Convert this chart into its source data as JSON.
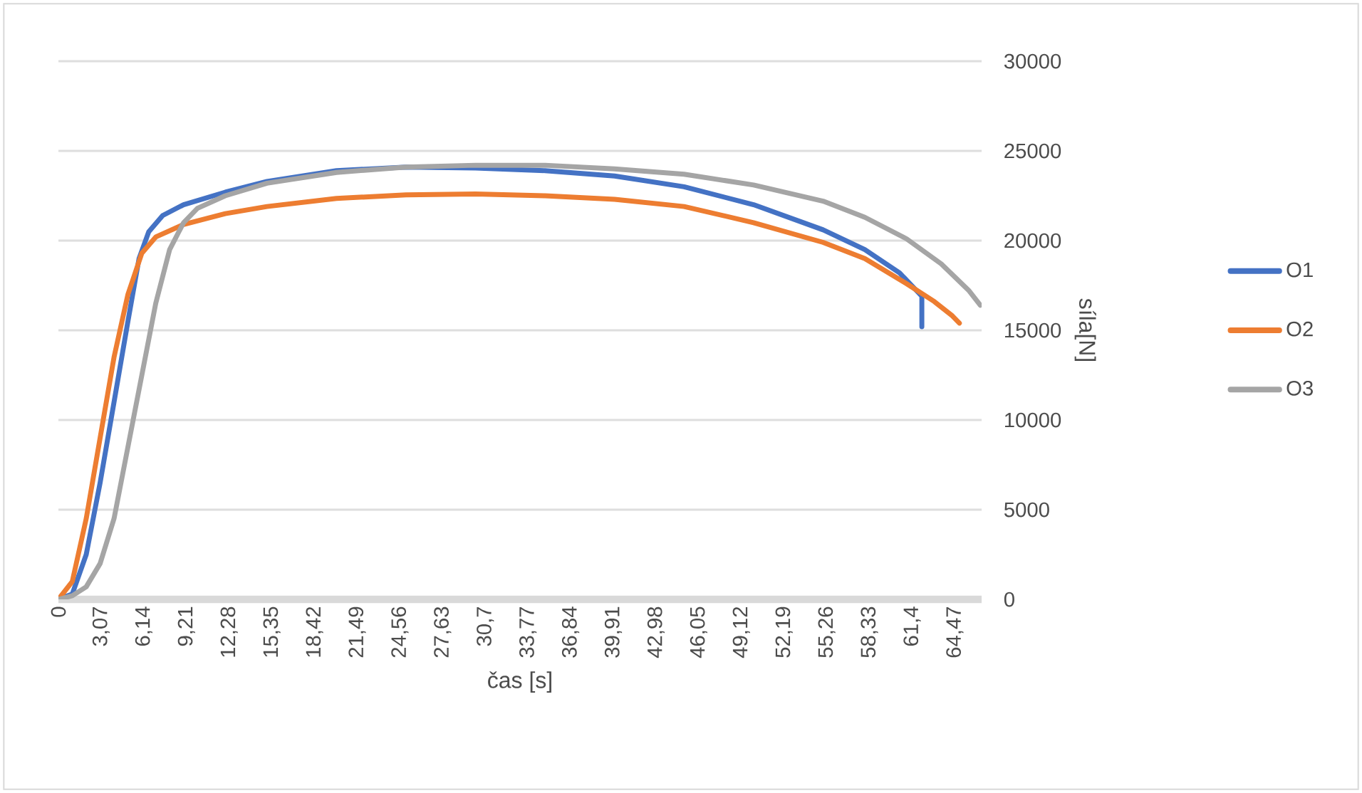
{
  "chart_data": {
    "type": "line",
    "xlabel": "čas [s]",
    "ylabel": "síla[N]",
    "xlim": [
      0,
      66.4
    ],
    "ylim": [
      0,
      30000
    ],
    "xticks": [
      {
        "value": 0,
        "label": "0"
      },
      {
        "value": 3.07,
        "label": "3,07"
      },
      {
        "value": 6.14,
        "label": "6,14"
      },
      {
        "value": 9.21,
        "label": "9,21"
      },
      {
        "value": 12.28,
        "label": "12,28"
      },
      {
        "value": 15.35,
        "label": "15,35"
      },
      {
        "value": 18.42,
        "label": "18,42"
      },
      {
        "value": 21.49,
        "label": "21,49"
      },
      {
        "value": 24.56,
        "label": "24,56"
      },
      {
        "value": 27.63,
        "label": "27,63"
      },
      {
        "value": 30.7,
        "label": "30,7"
      },
      {
        "value": 33.77,
        "label": "33,77"
      },
      {
        "value": 36.84,
        "label": "36,84"
      },
      {
        "value": 39.91,
        "label": "39,91"
      },
      {
        "value": 42.98,
        "label": "42,98"
      },
      {
        "value": 46.05,
        "label": "46,05"
      },
      {
        "value": 49.12,
        "label": "49,12"
      },
      {
        "value": 52.19,
        "label": "52,19"
      },
      {
        "value": 55.26,
        "label": "55,26"
      },
      {
        "value": 58.33,
        "label": "58,33"
      },
      {
        "value": 61.4,
        "label": "61,4"
      },
      {
        "value": 64.47,
        "label": "64,47"
      }
    ],
    "yticks": [
      0,
      5000,
      10000,
      15000,
      20000,
      25000,
      30000
    ],
    "grid": "y",
    "legend": "right",
    "marker": "none",
    "line_style": "solid",
    "series": [
      {
        "name": "O1",
        "color": "#4472c4",
        "x": [
          0,
          1,
          2,
          3,
          4,
          5,
          5.8,
          6.5,
          7.5,
          9,
          12,
          15,
          20,
          25,
          30,
          35,
          40,
          45,
          50,
          55,
          58,
          60.5,
          62.1,
          62.1
        ],
        "values": [
          0,
          300,
          2500,
          6500,
          11000,
          15500,
          19000,
          20500,
          21400,
          22000,
          22700,
          23300,
          23900,
          24100,
          24050,
          23900,
          23600,
          23000,
          22000,
          20600,
          19500,
          18200,
          16900,
          15200
        ]
      },
      {
        "name": "O2",
        "color": "#ed7d31",
        "x": [
          0,
          1,
          2,
          3,
          4,
          5,
          6,
          7,
          9,
          12,
          15,
          20,
          25,
          30,
          35,
          40,
          45,
          50,
          55,
          58,
          61,
          63,
          64.3,
          64.8
        ],
        "values": [
          0,
          1000,
          4500,
          9000,
          13500,
          17000,
          19300,
          20200,
          20900,
          21500,
          21900,
          22350,
          22550,
          22600,
          22500,
          22300,
          21900,
          21000,
          19900,
          19000,
          17600,
          16600,
          15800,
          15400
        ]
      },
      {
        "name": "O3",
        "color": "#a5a5a5",
        "x": [
          0,
          1,
          2,
          3,
          4,
          5,
          6,
          7,
          8,
          9,
          10,
          12,
          15,
          20,
          25,
          30,
          35,
          40,
          45,
          50,
          55,
          58,
          61,
          63.5,
          65.5,
          66.3
        ],
        "values": [
          0,
          200,
          700,
          2000,
          4500,
          8500,
          12500,
          16500,
          19500,
          21000,
          21800,
          22500,
          23200,
          23800,
          24100,
          24200,
          24200,
          24000,
          23700,
          23100,
          22200,
          21300,
          20100,
          18700,
          17200,
          16400
        ]
      }
    ]
  }
}
